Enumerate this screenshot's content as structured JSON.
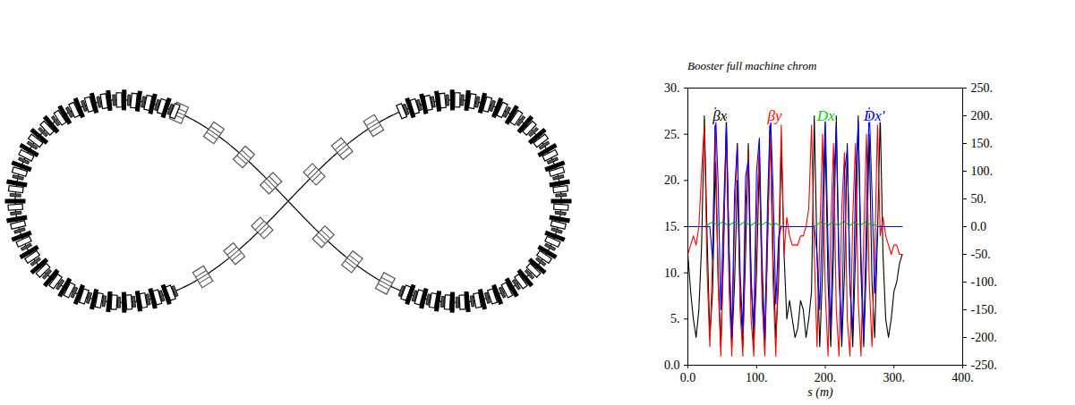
{
  "chart_data": {
    "type": "line",
    "title": "Booster full machine chrom",
    "xlabel": "s (m)",
    "x": [
      0,
      4,
      8,
      12,
      16,
      20,
      24,
      28,
      32,
      36,
      40,
      44,
      48,
      52,
      56,
      60,
      64,
      68,
      72,
      76,
      80,
      84,
      88,
      92,
      96,
      100,
      104,
      108,
      112,
      116,
      120,
      124,
      128,
      132,
      136,
      140,
      144,
      148,
      152,
      156,
      160,
      164,
      168,
      172,
      176,
      180,
      184,
      188,
      192,
      196,
      200,
      204,
      208,
      212,
      216,
      220,
      224,
      228,
      232,
      236,
      240,
      244,
      248,
      252,
      256,
      260,
      264,
      268,
      272,
      276,
      280,
      284,
      288,
      292,
      296,
      300,
      304,
      308,
      312
    ],
    "series": [
      {
        "name": "βx",
        "color": "#000000",
        "values": [
          12,
          8,
          5,
          3,
          6,
          13,
          27,
          14,
          3,
          8,
          22,
          10,
          2,
          12,
          27,
          12,
          2,
          9,
          20,
          8,
          2,
          12,
          24,
          10,
          2,
          10,
          22,
          9,
          2,
          13,
          27,
          12,
          3,
          9,
          24,
          12,
          5,
          7,
          5,
          3,
          4,
          7,
          6,
          3,
          5,
          8,
          27,
          12,
          2,
          10,
          25,
          9,
          2,
          12,
          27,
          11,
          2,
          10,
          24,
          9,
          2,
          12,
          27,
          10,
          2,
          11,
          25,
          9,
          3,
          14,
          27,
          12,
          5,
          3,
          5,
          8,
          9,
          11,
          12
        ]
      },
      {
        "name": "βy",
        "color": "#ff0000",
        "values": [
          12,
          13,
          14,
          13,
          15,
          21,
          26,
          10,
          2,
          12,
          26,
          9,
          1,
          14,
          25,
          8,
          1,
          16,
          24,
          6,
          1,
          17,
          23,
          5,
          1,
          16,
          24,
          7,
          1,
          14,
          25,
          9,
          1,
          12,
          26,
          12,
          16,
          14,
          13,
          13,
          13,
          14,
          14,
          15,
          17,
          26,
          12,
          2,
          14,
          25,
          8,
          1,
          15,
          24,
          6,
          1,
          17,
          23,
          5,
          1,
          16,
          24,
          7,
          1,
          14,
          25,
          9,
          2,
          12,
          26,
          14,
          16,
          14,
          13,
          12,
          13,
          13,
          12,
          12
        ]
      },
      {
        "name": "Dx",
        "color": "#00cc00",
        "axis": "y2",
        "values": [
          0,
          0,
          0,
          0,
          0,
          0,
          0,
          2,
          6,
          8,
          5,
          3,
          7,
          9,
          4,
          2,
          6,
          8,
          5,
          3,
          7,
          9,
          4,
          2,
          6,
          8,
          5,
          3,
          7,
          9,
          4,
          2,
          6,
          3,
          1,
          0,
          0,
          0,
          0,
          0,
          0,
          0,
          0,
          0,
          0,
          0,
          1,
          3,
          7,
          9,
          5,
          2,
          6,
          8,
          4,
          3,
          7,
          9,
          5,
          2,
          6,
          8,
          4,
          3,
          7,
          9,
          5,
          2,
          4,
          1,
          0,
          0,
          0,
          0,
          0,
          0,
          0,
          0,
          0
        ]
      },
      {
        "name": "Dx'",
        "color": "#0000ff",
        "axis": "y2",
        "values": [
          0,
          0,
          0,
          0,
          0,
          0,
          0,
          0,
          0,
          -60,
          215,
          80,
          -150,
          30,
          180,
          -40,
          -200,
          60,
          150,
          -80,
          -190,
          90,
          120,
          -100,
          -180,
          100,
          160,
          -60,
          -200,
          40,
          210,
          70,
          -140,
          -20,
          0,
          0,
          0,
          0,
          0,
          0,
          0,
          0,
          0,
          0,
          0,
          0,
          0,
          -50,
          -150,
          40,
          200,
          -30,
          -190,
          70,
          180,
          -90,
          -200,
          100,
          140,
          -110,
          -190,
          80,
          190,
          -50,
          -200,
          30,
          215,
          60,
          -120,
          0,
          0,
          0,
          0,
          0,
          0,
          0,
          0,
          0,
          0
        ]
      }
    ],
    "xlim": [
      0,
      400
    ],
    "xticks": [
      {
        "value": 0,
        "label": "0.0"
      },
      {
        "value": 100,
        "label": "100."
      },
      {
        "value": 200,
        "label": "200."
      },
      {
        "value": 300,
        "label": "300."
      },
      {
        "value": 400,
        "label": "400."
      }
    ],
    "ylim": [
      0,
      30
    ],
    "yticks": [
      {
        "value": 0,
        "label": "0.0"
      },
      {
        "value": 5,
        "label": "5."
      },
      {
        "value": 10,
        "label": "10."
      },
      {
        "value": 15,
        "label": "15."
      },
      {
        "value": 20,
        "label": "20."
      },
      {
        "value": 25,
        "label": "25."
      },
      {
        "value": 30,
        "label": "30."
      }
    ],
    "y2lim": [
      -250,
      250
    ],
    "y2ticks": [
      {
        "value": -250,
        "label": "-250."
      },
      {
        "value": -200,
        "label": "-200."
      },
      {
        "value": -150,
        "label": "-150."
      },
      {
        "value": -100,
        "label": "-100."
      },
      {
        "value": -50,
        "label": "-50."
      },
      {
        "value": 0,
        "label": "0.0"
      },
      {
        "value": 50,
        "label": "50."
      },
      {
        "value": 100,
        "label": "100."
      },
      {
        "value": 150,
        "label": "150."
      },
      {
        "value": 200,
        "label": "200."
      },
      {
        "value": 250,
        "label": "250."
      }
    ]
  }
}
